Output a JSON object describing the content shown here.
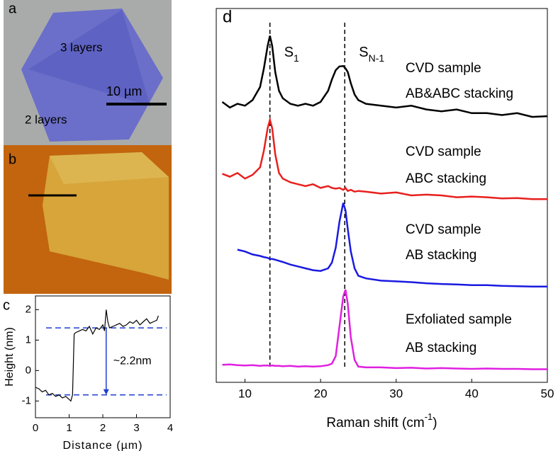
{
  "images": {
    "a": {
      "label": "a",
      "texts": [
        "3  layers",
        "2  layers"
      ],
      "scalebar": "10 µm"
    },
    "b": {
      "label": "b"
    }
  },
  "chart_data": [
    {
      "type": "line",
      "panel": "c",
      "xlabel": "Distance (µm)",
      "ylabel": "Height (nm)",
      "xlim": [
        0,
        4
      ],
      "ylim": [
        -1.55,
        2.45
      ],
      "xticks": [
        0,
        1,
        2,
        3,
        4
      ],
      "yticks": [
        -1,
        0,
        1,
        2
      ],
      "hlines": [
        1.4,
        -0.8
      ],
      "hline_color": "#1f3fd0",
      "annotation": "~2.2nm",
      "arrow_x": 2.1,
      "x": [
        0,
        0.1,
        0.2,
        0.3,
        0.4,
        0.5,
        0.6,
        0.7,
        0.8,
        0.9,
        1.0,
        1.05,
        1.1,
        1.15,
        1.2,
        1.3,
        1.4,
        1.5,
        1.6,
        1.7,
        1.8,
        1.9,
        2.0,
        2.05,
        2.1,
        2.15,
        2.2,
        2.3,
        2.4,
        2.5,
        2.6,
        2.7,
        2.8,
        2.9,
        3.0,
        3.1,
        3.2,
        3.3,
        3.4,
        3.5,
        3.6,
        3.65
      ],
      "series": [
        {
          "color": "#000000",
          "values": [
            -0.55,
            -0.6,
            -0.7,
            -0.65,
            -0.8,
            -0.75,
            -0.85,
            -0.8,
            -0.9,
            -0.85,
            -0.95,
            -1.0,
            -0.8,
            1.2,
            1.25,
            1.3,
            1.35,
            1.3,
            1.45,
            1.2,
            1.4,
            1.35,
            1.5,
            1.3,
            2.0,
            1.6,
            1.4,
            1.45,
            1.5,
            1.55,
            1.45,
            1.5,
            1.6,
            1.55,
            1.65,
            1.5,
            1.6,
            1.7,
            1.55,
            1.6,
            1.65,
            1.8
          ]
        }
      ]
    },
    {
      "type": "line",
      "panel": "d",
      "xlabel": {
        "text": "Raman shift (cm",
        "sup": "-1",
        "end": ")"
      },
      "xlim": [
        6.2,
        50
      ],
      "ylim": [
        0,
        10
      ],
      "xticks": [
        10,
        20,
        30,
        40,
        50
      ],
      "vlines": [
        13.3,
        23.2
      ],
      "peak_labels": [
        {
          "text": "S",
          "sub": "1"
        },
        {
          "text": "S",
          "sub": "N-1"
        }
      ],
      "x": [
        7,
        8,
        9,
        10,
        11,
        12,
        12.5,
        13,
        13.3,
        13.6,
        14,
        14.5,
        15,
        16,
        17,
        18,
        19,
        20,
        21,
        21.5,
        22,
        22.5,
        23,
        23.3,
        23.6,
        24,
        24.5,
        25,
        26,
        28,
        30,
        32,
        34,
        36,
        38,
        40,
        42,
        44,
        46,
        48,
        50
      ],
      "series": [
        {
          "label_lines": [
            "CVD sample",
            "AB&ABC stacking"
          ],
          "color": "#000000",
          "values": [
            7.5,
            7.35,
            7.45,
            7.4,
            7.55,
            7.9,
            8.4,
            9.0,
            9.27,
            9.0,
            8.3,
            7.8,
            7.6,
            7.45,
            7.4,
            7.45,
            7.4,
            7.5,
            7.8,
            8.1,
            8.35,
            8.45,
            8.46,
            8.4,
            8.3,
            8.0,
            7.7,
            7.55,
            7.45,
            7.4,
            7.35,
            7.4,
            7.3,
            7.25,
            7.3,
            7.2,
            7.2,
            7.15,
            7.2,
            7.1,
            7.12
          ]
        },
        {
          "label_lines": [
            "CVD sample",
            "ABC stacking"
          ],
          "color": "#e8201e",
          "values": [
            5.58,
            5.5,
            5.6,
            5.45,
            5.55,
            5.75,
            6.2,
            6.8,
            7.02,
            6.8,
            6.1,
            5.6,
            5.45,
            5.35,
            5.3,
            5.25,
            5.3,
            5.2,
            5.25,
            5.2,
            5.18,
            5.2,
            5.15,
            5.2,
            5.12,
            5.15,
            5.1,
            5.12,
            5.1,
            5.05,
            5.08,
            5.0,
            5.02,
            5.0,
            4.95,
            4.97,
            4.95,
            4.92,
            4.93,
            4.9,
            4.9
          ]
        },
        {
          "label_lines": [
            "CVD sample",
            "AB stacking"
          ],
          "color": "#1a1ae0",
          "values": [
            null,
            null,
            3.55,
            3.5,
            3.42,
            3.38,
            3.35,
            3.33,
            3.3,
            3.3,
            3.28,
            3.25,
            3.22,
            3.15,
            3.1,
            3.05,
            3.0,
            2.98,
            3.05,
            3.2,
            3.6,
            4.3,
            4.8,
            4.6,
            4.1,
            3.5,
            3.05,
            2.85,
            2.78,
            2.72,
            2.7,
            2.68,
            2.65,
            2.63,
            2.62,
            2.6,
            2.6,
            2.58,
            2.57,
            2.56,
            2.56
          ]
        },
        {
          "label_lines": [
            "Exfoliated sample",
            "AB stacking"
          ],
          "color": "#e020e0",
          "values": [
            0.47,
            0.48,
            0.46,
            0.45,
            0.46,
            0.44,
            0.45,
            0.45,
            0.44,
            0.45,
            0.44,
            0.44,
            0.43,
            0.44,
            0.42,
            0.43,
            0.42,
            0.43,
            0.46,
            0.5,
            0.7,
            1.5,
            2.3,
            2.48,
            2.1,
            1.2,
            0.6,
            0.42,
            0.4,
            0.4,
            0.38,
            0.39,
            0.37,
            0.38,
            0.37,
            0.36,
            0.37,
            0.36,
            0.36,
            0.35,
            0.35
          ]
        }
      ]
    }
  ]
}
